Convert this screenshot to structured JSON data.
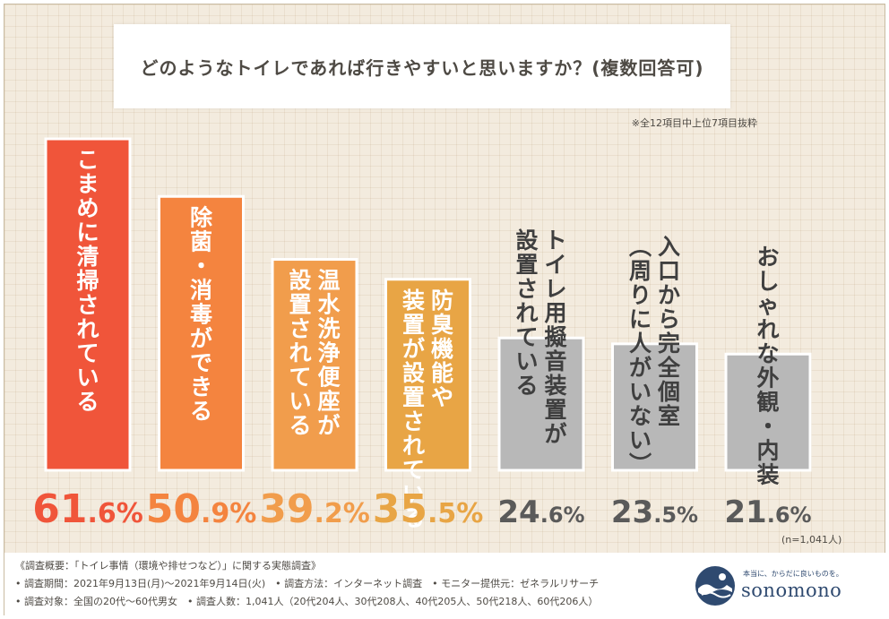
{
  "title": "どのようなトイレであれば行きやすいと思いますか？(複数回答可)",
  "note": "※全12項目中上位7項目抜粋",
  "sample": "(n=1,041人)",
  "chart_data": {
    "type": "bar",
    "title": "どのようなトイレであれば行きやすいと思いますか？(複数回答可)",
    "categories": [
      "こまめに清掃されている",
      "除菌・消毒ができる",
      "温水洗浄便座が設置されている",
      "防臭機能や装置が設置されている",
      "トイレ用擬音装置が設置されている",
      "入口から完全個室(周りに人がいない)",
      "おしゃれな外観・内装"
    ],
    "values": [
      61.6,
      50.9,
      39.2,
      35.5,
      24.6,
      23.5,
      21.6
    ],
    "value_labels": [
      "61.6%",
      "50.9%",
      "39.2%",
      "35.5%",
      "24.6%",
      "23.5%",
      "21.6%"
    ],
    "bar_colors": [
      "#f0553a",
      "#f4843f",
      "#f19d4c",
      "#e8a545",
      "#b8b8b8",
      "#b8b8b8",
      "#b8b8b8"
    ],
    "value_colors": [
      "#f0553a",
      "#f4843f",
      "#f19d4c",
      "#e8a545",
      "#5a5a5a",
      "#5a5a5a",
      "#5a5a5a"
    ],
    "bar_label_columns": [
      [
        "こまめに清掃されている"
      ],
      [
        "除菌・消毒ができる"
      ],
      [
        "温水洗浄便座が",
        "設置されている"
      ],
      [
        "防臭機能や",
        "装置が設置されている"
      ],
      [
        "トイレ用擬音装置が",
        "設置されている"
      ],
      [
        "入口から完全個室",
        "(周りに人がいない)"
      ],
      [
        "おしゃれな外観・内装"
      ]
    ],
    "ylim": [
      0,
      61.6
    ],
    "grid": false,
    "legend": "none"
  },
  "footer": {
    "line1": "《調査概要：「トイレ事情（環境や排せつなど）」に関する実態調査》",
    "line2": "• 調査期間：2021年9月13日(月)～2021年9月14日(火)　• 調査方法：インターネット調査　• モニター提供元：ゼネラルリサーチ",
    "line3": "• 調査対象：全国の20代～60代男女　• 調査人数：1,041人（20代204人、30代208人、40代205人、50代218人、60代206人）"
  },
  "logo": {
    "tagline": "本当に、からだに良いものを。",
    "name": "sonomono",
    "mark_colors": {
      "navy": "#2f4a70",
      "light": "#ffffff"
    }
  }
}
